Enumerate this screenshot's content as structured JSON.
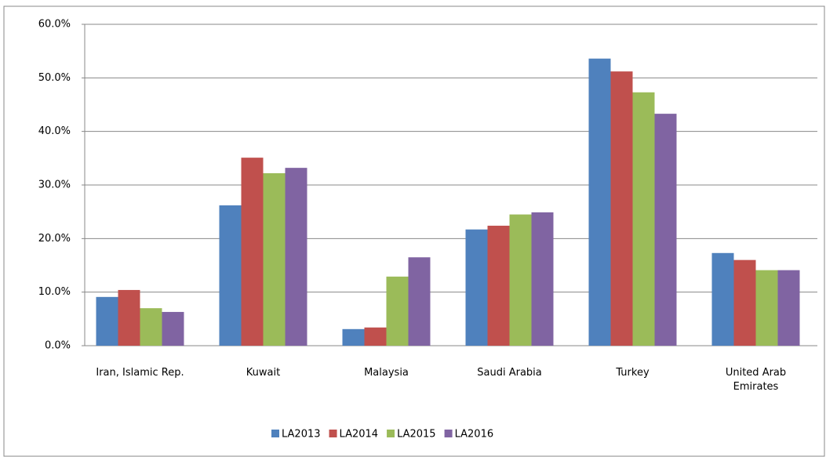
{
  "chart_data": {
    "type": "bar",
    "categories": [
      "Iran, Islamic Rep.",
      "Kuwait",
      "Malaysia",
      "Saudi Arabia",
      "Turkey",
      "United Arab Emirates"
    ],
    "series": [
      {
        "name": "LA2013",
        "color": "#4f81bd",
        "values": [
          9.1,
          26.2,
          3.1,
          21.7,
          53.6,
          17.3
        ]
      },
      {
        "name": "LA2014",
        "color": "#c0504d",
        "values": [
          10.4,
          35.1,
          3.4,
          22.4,
          51.2,
          16.0
        ]
      },
      {
        "name": "LA2015",
        "color": "#9bbb59",
        "values": [
          7.0,
          32.2,
          12.9,
          24.5,
          47.3,
          14.1
        ]
      },
      {
        "name": "LA2016",
        "color": "#8064a2",
        "values": [
          6.3,
          33.2,
          16.5,
          24.9,
          43.3,
          14.1
        ]
      }
    ],
    "ylim": [
      0,
      60
    ],
    "yticks": [
      {
        "value": 0,
        "label": "0.0%"
      },
      {
        "value": 10,
        "label": "10.0%"
      },
      {
        "value": 20,
        "label": "20.0%"
      },
      {
        "value": 30,
        "label": "30.0%"
      },
      {
        "value": 40,
        "label": "40.0%"
      },
      {
        "value": 50,
        "label": "50.0%"
      },
      {
        "value": 60,
        "label": "60.0%"
      }
    ],
    "grid": true,
    "legend": "bottom"
  }
}
